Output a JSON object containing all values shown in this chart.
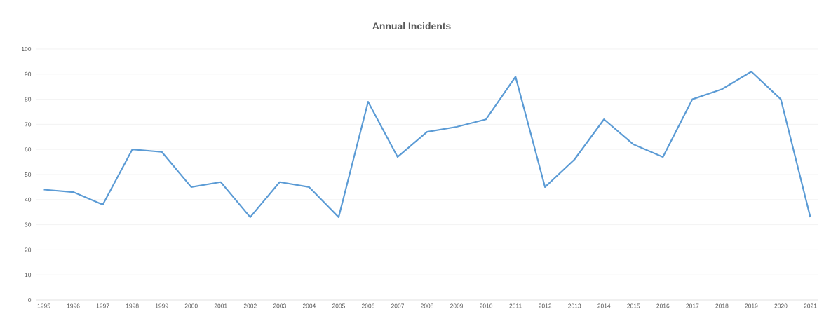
{
  "chart_data": {
    "type": "line",
    "title": "Annual Incidents",
    "categories": [
      "1995",
      "1996",
      "1997",
      "1998",
      "1999",
      "2000",
      "2001",
      "2002",
      "2003",
      "2004",
      "2005",
      "2006",
      "2007",
      "2008",
      "2009",
      "2010",
      "2011",
      "2012",
      "2013",
      "2014",
      "2015",
      "2016",
      "2017",
      "2018",
      "2019",
      "2020",
      "2021"
    ],
    "values": [
      44,
      43,
      38,
      60,
      59,
      45,
      47,
      33,
      47,
      45,
      33,
      79,
      57,
      67,
      69,
      72,
      89,
      45,
      56,
      72,
      62,
      57,
      80,
      84,
      91,
      80,
      33
    ],
    "color": "#5b9bd5",
    "ylim": [
      0,
      100
    ],
    "yticks": [
      0,
      10,
      20,
      30,
      40,
      50,
      60,
      70,
      80,
      90,
      100
    ],
    "grid": "y",
    "marker": "none",
    "line_style": "solid"
  }
}
